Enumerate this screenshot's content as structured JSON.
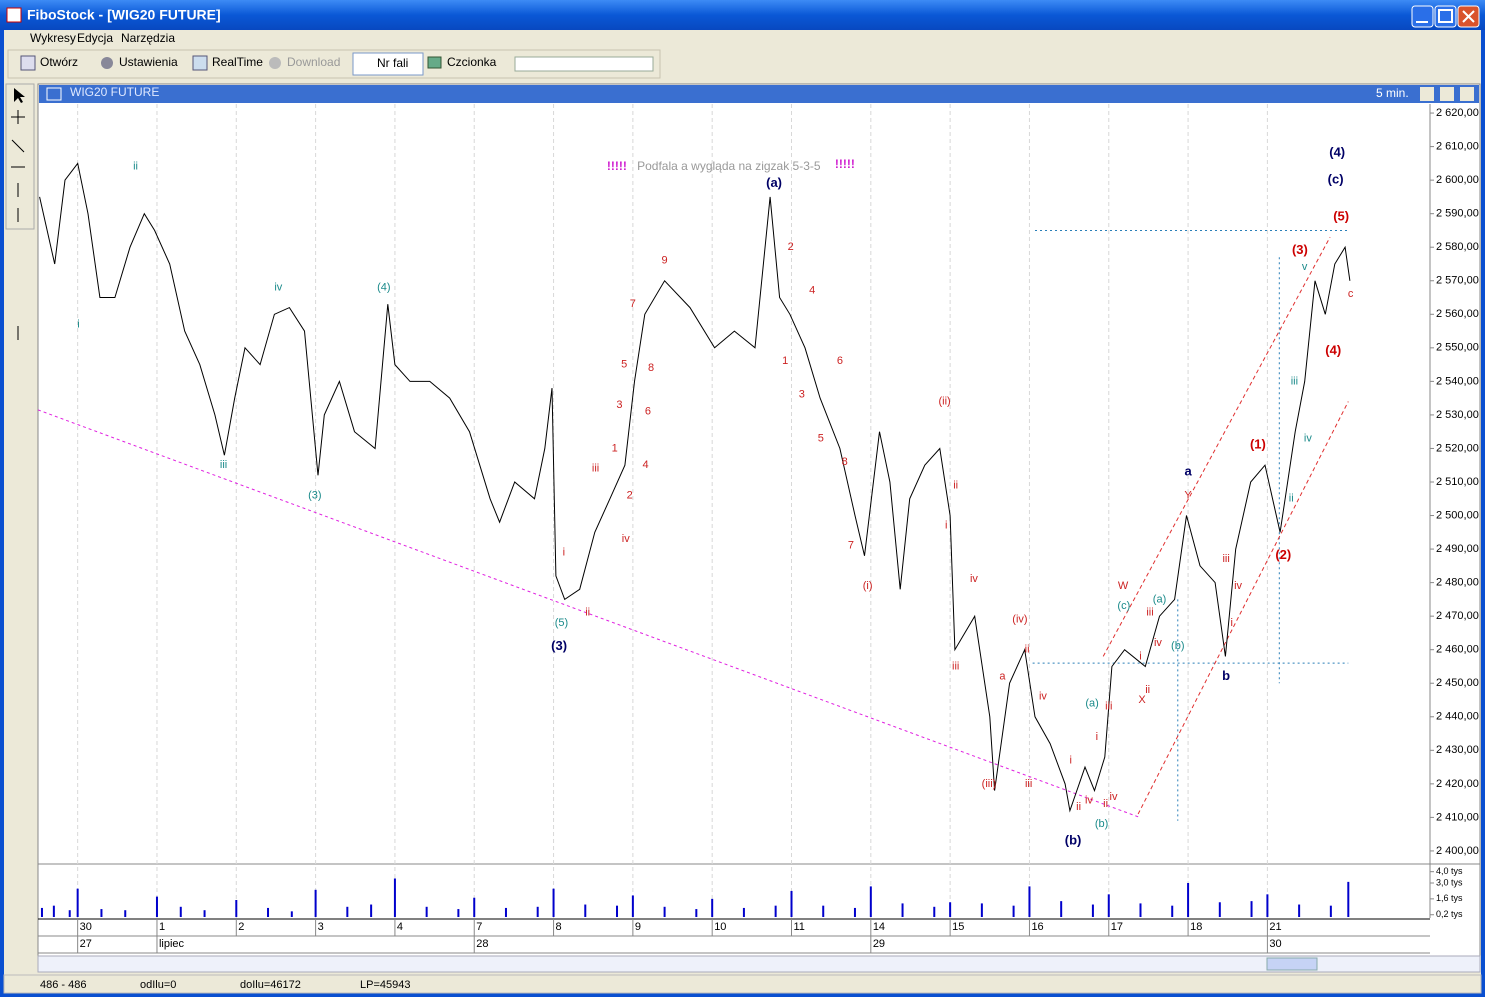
{
  "window": {
    "title": "FiboStock - [WIG20 FUTURE]"
  },
  "menu": [
    "Wykresy",
    "Edycja",
    "Narzędzia"
  ],
  "toolbar": [
    "Otwórz",
    "Ustawienia",
    "RealTime",
    "Download",
    "Nr fali",
    "Czcionka"
  ],
  "panel": {
    "title": "WIG20 FUTURE",
    "interval": "5 min."
  },
  "status": [
    "486 - 486",
    "odIlu=0",
    "doIlu=46172",
    "LP=45943"
  ],
  "chart_data": {
    "type": "line",
    "color": "#000000",
    "x": [
      -0.48,
      -0.29,
      -0.16,
      0,
      0.13,
      0.28,
      0.47,
      0.66,
      0.84,
      0.97,
      1.16,
      1.35,
      1.54,
      1.73,
      1.85,
      1.98,
      2.11,
      2.3,
      2.48,
      2.67,
      2.86,
      3.03,
      3.11,
      3.3,
      3.49,
      3.75,
      3.91,
      4.0,
      4.19,
      4.44,
      4.69,
      4.94,
      5.2,
      5.32,
      5.51,
      5.76,
      5.89,
      5.98,
      6.03,
      6.14,
      6.33,
      6.52,
      6.71,
      6.9,
      7.02,
      7.15,
      7.4,
      7.72,
      8.03,
      8.28,
      8.54,
      8.73,
      8.85,
      8.98,
      9.17,
      9.36,
      9.61,
      9.8,
      9.92,
      10.11,
      10.24,
      10.37,
      10.49,
      10.68,
      10.87,
      11.0,
      11.06,
      11.31,
      11.5,
      11.56,
      11.75,
      11.94,
      12.07,
      12.26,
      12.45,
      12.51,
      12.7,
      12.82,
      12.95,
      13.04,
      13.2,
      13.46,
      13.64,
      13.83,
      13.98,
      14.15,
      14.34,
      14.47,
      14.6,
      14.79,
      14.97,
      15.16,
      15.35,
      15.47,
      15.6,
      15.73,
      15.85,
      15.98,
      16.04
    ],
    "values": [
      2595,
      2575,
      2600,
      2605,
      2590,
      2565,
      2565,
      2580,
      2590,
      2585,
      2575,
      2555,
      2545,
      2530,
      2518,
      2535,
      2550,
      2545,
      2560,
      2562,
      2555,
      2512,
      2530,
      2540,
      2525,
      2520,
      2563,
      2545,
      2540,
      2540,
      2535,
      2525,
      2505,
      2498,
      2510,
      2505,
      2520,
      2538,
      2482,
      2475,
      2478,
      2495,
      2505,
      2515,
      2540,
      2560,
      2570,
      2562,
      2550,
      2555,
      2550,
      2595,
      2565,
      2560,
      2550,
      2535,
      2520,
      2500,
      2488,
      2525,
      2510,
      2478,
      2505,
      2515,
      2520,
      2500,
      2460,
      2470,
      2440,
      2418,
      2450,
      2460,
      2440,
      2432,
      2420,
      2412,
      2425,
      2418,
      2428,
      2455,
      2460,
      2455,
      2470,
      2475,
      2500,
      2485,
      2480,
      2458,
      2490,
      2510,
      2515,
      2495,
      2525,
      2540,
      2570,
      2560,
      2575,
      2580,
      2570
    ],
    "xlim": [
      -0.5,
      17.05
    ],
    "ylim": [
      2396.7,
      2622.7
    ],
    "yticks": [
      {
        "value": 2620,
        "label": "2 620,00"
      },
      {
        "value": 2610,
        "label": "2 610,00"
      },
      {
        "value": 2600,
        "label": "2 600,00"
      },
      {
        "value": 2590,
        "label": "2 590,00"
      },
      {
        "value": 2580,
        "label": "2 580,00"
      },
      {
        "value": 2570,
        "label": "2 570,00"
      },
      {
        "value": 2560,
        "label": "2 560,00"
      },
      {
        "value": 2550,
        "label": "2 550,00"
      },
      {
        "value": 2540,
        "label": "2 540,00"
      },
      {
        "value": 2530,
        "label": "2 530,00"
      },
      {
        "value": 2520,
        "label": "2 520,00"
      },
      {
        "value": 2510,
        "label": "2 510,00"
      },
      {
        "value": 2500,
        "label": "2 500,00"
      },
      {
        "value": 2490,
        "label": "2 490,00"
      },
      {
        "value": 2480,
        "label": "2 480,00"
      },
      {
        "value": 2470,
        "label": "2 470,00"
      },
      {
        "value": 2460,
        "label": "2 460,00"
      },
      {
        "value": 2450,
        "label": "2 450,00"
      },
      {
        "value": 2440,
        "label": "2 440,00"
      },
      {
        "value": 2430,
        "label": "2 430,00"
      },
      {
        "value": 2420,
        "label": "2 420,00"
      },
      {
        "value": 2410,
        "label": "2 410,00"
      },
      {
        "value": 2400,
        "label": "2 400,00"
      }
    ],
    "xticks": [
      {
        "value": 0,
        "label": "30"
      },
      {
        "value": 1,
        "label": "1"
      },
      {
        "value": 2,
        "label": "2"
      },
      {
        "value": 3,
        "label": "3"
      },
      {
        "value": 4,
        "label": "4"
      },
      {
        "value": 5,
        "label": "7"
      },
      {
        "value": 6,
        "label": "8"
      },
      {
        "value": 7,
        "label": "9"
      },
      {
        "value": 8,
        "label": "10"
      },
      {
        "value": 9,
        "label": "11"
      },
      {
        "value": 10,
        "label": "14"
      },
      {
        "value": 11,
        "label": "15"
      },
      {
        "value": 12,
        "label": "16"
      },
      {
        "value": 13,
        "label": "17"
      },
      {
        "value": 14,
        "label": "18"
      },
      {
        "value": 15,
        "label": "21"
      }
    ],
    "xticks2": [
      {
        "value": 0,
        "label": "27"
      },
      {
        "value": 1,
        "label": "lipiec"
      },
      {
        "value": 5,
        "label": "28"
      },
      {
        "value": 10,
        "label": "29"
      },
      {
        "value": 15,
        "label": "30"
      }
    ],
    "grid": true,
    "volume": {
      "color": "#0000cc",
      "ylim": [
        0,
        4.5
      ],
      "yticks": [
        {
          "value": 4.0,
          "label": "4,0 tys"
        },
        {
          "value": 3.0,
          "label": "3,0 tys"
        },
        {
          "value": 1.6,
          "label": "1,6 tys"
        },
        {
          "value": 0.2,
          "label": "0,2 tys"
        }
      ],
      "x": [
        -0.45,
        -0.3,
        -0.1,
        0,
        0.3,
        0.6,
        1,
        1.3,
        1.6,
        2,
        2.4,
        2.7,
        3,
        3.4,
        3.7,
        4,
        4.4,
        4.8,
        5,
        5.4,
        5.8,
        6,
        6.4,
        6.8,
        7,
        7.4,
        7.8,
        8,
        8.4,
        8.8,
        9,
        9.4,
        9.8,
        10,
        10.4,
        10.8,
        11,
        11.4,
        11.8,
        12,
        12.4,
        12.8,
        13,
        13.4,
        13.8,
        14,
        14.4,
        14.8,
        15,
        15.4,
        15.8,
        16.02
      ],
      "values": [
        0.8,
        1.0,
        0.6,
        2.5,
        0.7,
        0.6,
        1.8,
        0.9,
        0.6,
        1.5,
        0.8,
        0.5,
        2.4,
        0.9,
        1.1,
        3.4,
        0.9,
        0.7,
        1.7,
        0.8,
        0.9,
        2.5,
        1.1,
        1.0,
        1.9,
        0.9,
        0.7,
        1.6,
        0.8,
        1.0,
        2.3,
        1.0,
        0.8,
        2.7,
        1.2,
        0.9,
        1.3,
        1.2,
        1.0,
        2.7,
        1.4,
        1.1,
        2.0,
        1.2,
        1.0,
        3.0,
        1.3,
        1.4,
        2.0,
        1.1,
        1.0,
        3.1
      ]
    },
    "annotations": [
      {
        "color": "#cc2222",
        "labels": [
          {
            "text": "i",
            "x": 6.13,
            "y": 2489
          },
          {
            "text": "ii",
            "x": 6.43,
            "y": 2471
          },
          {
            "text": "iii",
            "x": 6.53,
            "y": 2514
          },
          {
            "text": "iv",
            "x": 6.91,
            "y": 2493
          },
          {
            "text": "1",
            "x": 6.77,
            "y": 2520
          },
          {
            "text": "2",
            "x": 6.96,
            "y": 2506
          },
          {
            "text": "3",
            "x": 6.83,
            "y": 2533
          },
          {
            "text": "4",
            "x": 7.16,
            "y": 2515
          },
          {
            "text": "5",
            "x": 6.89,
            "y": 2545
          },
          {
            "text": "6",
            "x": 7.19,
            "y": 2531
          },
          {
            "text": "7",
            "x": 7.0,
            "y": 2563
          },
          {
            "text": "8",
            "x": 7.23,
            "y": 2544
          },
          {
            "text": "9",
            "x": 7.4,
            "y": 2576
          },
          {
            "text": "2",
            "x": 8.99,
            "y": 2580
          },
          {
            "text": "4",
            "x": 9.26,
            "y": 2567
          },
          {
            "text": "1",
            "x": 8.92,
            "y": 2546
          },
          {
            "text": "6",
            "x": 9.61,
            "y": 2546
          },
          {
            "text": "3",
            "x": 9.13,
            "y": 2536
          },
          {
            "text": "5",
            "x": 9.37,
            "y": 2523
          },
          {
            "text": "8",
            "x": 9.67,
            "y": 2516
          },
          {
            "text": "7",
            "x": 9.75,
            "y": 2491
          },
          {
            "text": "(i)",
            "x": 9.96,
            "y": 2479
          },
          {
            "text": "(ii)",
            "x": 10.93,
            "y": 2534
          },
          {
            "text": "ii",
            "x": 11.07,
            "y": 2509
          },
          {
            "text": "i",
            "x": 10.95,
            "y": 2497
          },
          {
            "text": "iv",
            "x": 11.3,
            "y": 2481
          },
          {
            "text": "iii",
            "x": 11.07,
            "y": 2455
          },
          {
            "text": "(iv)",
            "x": 11.88,
            "y": 2469
          },
          {
            "text": "a",
            "x": 11.66,
            "y": 2452
          },
          {
            "text": "ii",
            "x": 11.97,
            "y": 2460
          },
          {
            "text": "(iii)",
            "x": 11.49,
            "y": 2420
          },
          {
            "text": "iv",
            "x": 12.17,
            "y": 2446
          },
          {
            "text": "iii",
            "x": 11.99,
            "y": 2420
          },
          {
            "text": "iii",
            "x": 13.0,
            "y": 2443
          },
          {
            "text": "i",
            "x": 12.85,
            "y": 2434
          },
          {
            "text": "i",
            "x": 12.52,
            "y": 2427
          },
          {
            "text": "iv",
            "x": 13.06,
            "y": 2416
          },
          {
            "text": "iv",
            "x": 12.75,
            "y": 2415
          },
          {
            "text": "ii",
            "x": 12.62,
            "y": 2413
          },
          {
            "text": "ii",
            "x": 12.96,
            "y": 2414
          },
          {
            "text": "W",
            "x": 13.18,
            "y": 2479
          },
          {
            "text": "iii",
            "x": 13.52,
            "y": 2471
          },
          {
            "text": "iv",
            "x": 13.62,
            "y": 2462
          },
          {
            "text": "i",
            "x": 13.4,
            "y": 2458
          },
          {
            "text": "ii",
            "x": 13.49,
            "y": 2448
          },
          {
            "text": "X",
            "x": 13.42,
            "y": 2445
          },
          {
            "text": "Y",
            "x": 14.0,
            "y": 2506
          },
          {
            "text": "iii",
            "x": 14.48,
            "y": 2487
          },
          {
            "text": "iv",
            "x": 14.63,
            "y": 2479
          },
          {
            "text": "i",
            "x": 14.55,
            "y": 2468
          },
          {
            "text": "c",
            "x": 16.05,
            "y": 2566
          }
        ]
      },
      {
        "color": "#cc0000",
        "bold": true,
        "labels": [
          {
            "text": "(1)",
            "x": 14.88,
            "y": 2521
          },
          {
            "text": "(2)",
            "x": 15.2,
            "y": 2488
          },
          {
            "text": "(3)",
            "x": 15.41,
            "y": 2579
          },
          {
            "text": "(4)",
            "x": 15.83,
            "y": 2549
          },
          {
            "text": "(5)",
            "x": 15.93,
            "y": 2589
          }
        ]
      },
      {
        "color": "#1a8a8a",
        "labels": [
          {
            "text": "ii",
            "x": 0.73,
            "y": 2604
          },
          {
            "text": "i",
            "x": 0.01,
            "y": 2557
          },
          {
            "text": "iii",
            "x": 1.84,
            "y": 2515
          },
          {
            "text": "iv",
            "x": 2.53,
            "y": 2568
          },
          {
            "text": "(3)",
            "x": 2.99,
            "y": 2506
          },
          {
            "text": "(4)",
            "x": 3.86,
            "y": 2568
          },
          {
            "text": "(5)",
            "x": 6.1,
            "y": 2468
          },
          {
            "text": "(a)",
            "x": 12.79,
            "y": 2444
          },
          {
            "text": "(b)",
            "x": 12.91,
            "y": 2408
          },
          {
            "text": "(c)",
            "x": 13.19,
            "y": 2473
          },
          {
            "text": "(a)",
            "x": 13.64,
            "y": 2475
          },
          {
            "text": "(b)",
            "x": 13.87,
            "y": 2461
          },
          {
            "text": "ii",
            "x": 15.3,
            "y": 2505
          },
          {
            "text": "iii",
            "x": 15.34,
            "y": 2540
          },
          {
            "text": "iv",
            "x": 15.51,
            "y": 2523
          },
          {
            "text": "v",
            "x": 15.47,
            "y": 2574
          }
        ]
      },
      {
        "color": "#000066",
        "bold": true,
        "labels": [
          {
            "text": "(3)",
            "x": 6.07,
            "y": 2461
          },
          {
            "text": "(a)",
            "x": 8.78,
            "y": 2599
          },
          {
            "text": "(b)",
            "x": 12.55,
            "y": 2403
          },
          {
            "text": "a",
            "x": 14.0,
            "y": 2513
          },
          {
            "text": "b",
            "x": 14.48,
            "y": 2452
          },
          {
            "text": "(4)",
            "x": 15.88,
            "y": 2608
          },
          {
            "text": "(c)",
            "x": 15.86,
            "y": 2600
          }
        ]
      }
    ],
    "note": {
      "mark": "!!!!!",
      "text": "Podfala a wygląda na zigzak 5-3-5",
      "x": 8.21,
      "y": 2604
    },
    "lines": [
      {
        "color": "#e020e0",
        "dash": "3,3",
        "x": [
          -0.5,
          13.39
        ],
        "y": [
          2531.5,
          2410
        ]
      },
      {
        "color": "#2a7fb8",
        "dash": "2,3",
        "x": [
          12.07,
          16.02
        ],
        "y": [
          2585,
          2585
        ]
      },
      {
        "color": "#2a7fb8",
        "dash": "2,3",
        "x": [
          12.04,
          16.02
        ],
        "y": [
          2456,
          2456
        ]
      },
      {
        "color": "#2a7fb8",
        "dash": "2,3",
        "x": [
          13.87,
          13.87
        ],
        "y": [
          2475,
          2409
        ]
      },
      {
        "color": "#2a7fb8",
        "dash": "2,3",
        "x": [
          15.15,
          15.15
        ],
        "y": [
          2577,
          2450
        ]
      },
      {
        "color": "#e03030",
        "dash": "4,3",
        "x": [
          12.93,
          15.79
        ],
        "y": [
          2458,
          2583
        ]
      },
      {
        "color": "#e03030",
        "dash": "4,3",
        "x": [
          13.37,
          16.02
        ],
        "y": [
          2411,
          2534
        ]
      }
    ]
  }
}
